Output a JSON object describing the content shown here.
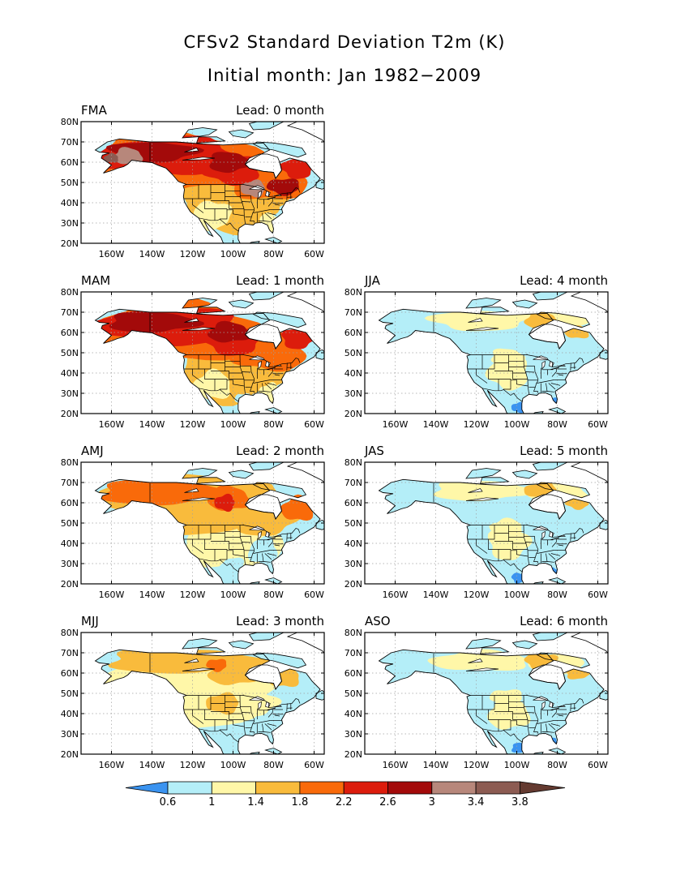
{
  "title": "CFSv2 Standard Deviation T2m (K)",
  "subtitle": "Initial month: Jan 1982−2009",
  "lat_labels": [
    "80N",
    "70N",
    "60N",
    "50N",
    "40N",
    "30N",
    "20N"
  ],
  "lon_labels": [
    "160W",
    "140W",
    "120W",
    "100W",
    "80W",
    "60W"
  ],
  "panels": [
    {
      "season": "FMA",
      "lead": "Lead: 0 month",
      "col": 0,
      "row": 0,
      "level": 6
    },
    {
      "season": "MAM",
      "lead": "Lead: 1 month",
      "col": 0,
      "row": 1,
      "level": 5
    },
    {
      "season": "JJA",
      "lead": "Lead: 4 month",
      "col": 1,
      "row": 1,
      "level": 2
    },
    {
      "season": "AMJ",
      "lead": "Lead: 2 month",
      "col": 0,
      "row": 2,
      "level": 4
    },
    {
      "season": "JAS",
      "lead": "Lead: 5 month",
      "col": 1,
      "row": 2,
      "level": 2
    },
    {
      "season": "MJJ",
      "lead": "Lead: 3 month",
      "col": 0,
      "row": 3,
      "level": 3
    },
    {
      "season": "ASO",
      "lead": "Lead: 6 month",
      "col": 1,
      "row": 3,
      "level": 2
    }
  ],
  "colorbar": {
    "labels": [
      "0.6",
      "1",
      "1.4",
      "1.8",
      "2.2",
      "2.6",
      "3",
      "3.4",
      "3.8"
    ],
    "colors": [
      "#3a93f0",
      "#b4eef8",
      "#fff7a8",
      "#f9bb3c",
      "#f96a0a",
      "#dc1c0c",
      "#a30a0a",
      "#b7877b",
      "#8c5b52",
      "#643a30"
    ]
  },
  "colors": {
    "ocean": "#ffffff",
    "land_outline": "#000000",
    "grid": "#a0a0a0"
  }
}
